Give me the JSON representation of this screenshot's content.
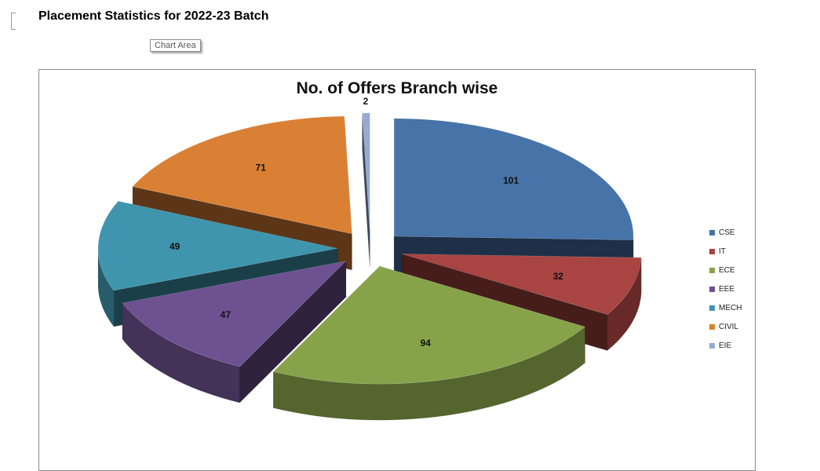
{
  "page": {
    "heading": "Placement Statistics for 2022-23 Batch",
    "tooltip": "Chart Area"
  },
  "chart_data": {
    "type": "pie",
    "title": "No. of Offers Branch wise",
    "categories": [
      "CSE",
      "IT",
      "ECE",
      "EEE",
      "MECH",
      "CIVIL",
      "EIE"
    ],
    "values": [
      101,
      32,
      94,
      47,
      49,
      71,
      2
    ],
    "colors": [
      "#4673a8",
      "#a84441",
      "#87a34a",
      "#6d5190",
      "#3f95ad",
      "#da8034",
      "#94acd3"
    ],
    "exploded": true,
    "three_d": true,
    "data_labels": true,
    "legend_position": "right"
  }
}
